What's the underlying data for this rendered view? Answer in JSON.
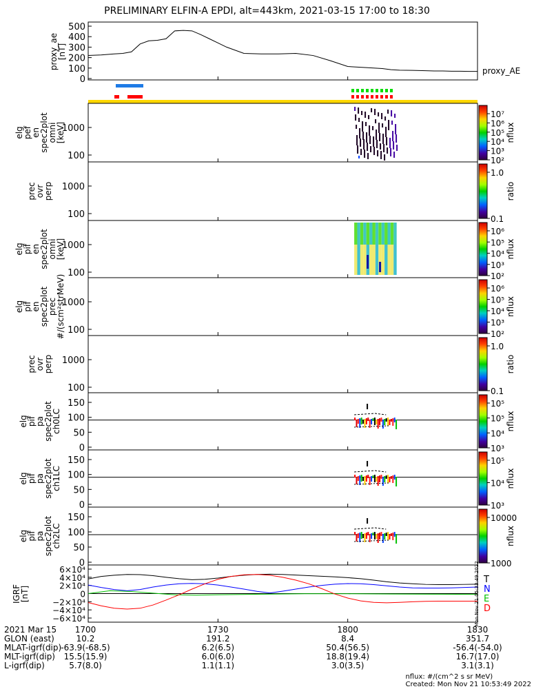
{
  "title": "PRELIMINARY ELFIN-A EPDI, alt=443km, 2021-03-15 17:00 to 18:30",
  "chart_data": {
    "type": "line",
    "panels": [
      {
        "name": "proxy_ae",
        "ylabel": [
          "proxy_ae",
          "[nT]"
        ],
        "right_label": "proxy_AE",
        "ylim": [
          0,
          500
        ],
        "yticks": [
          "500",
          "400",
          "300",
          "200",
          "100",
          "0"
        ],
        "yvalues": [
          500,
          400,
          300,
          200,
          100,
          0
        ],
        "series": [
          {
            "x": [
              0,
              3,
              6,
              8,
              10,
              12,
              14,
              16,
              18,
              20,
              22,
              24,
              26,
              28,
              30,
              32,
              36,
              40,
              44,
              48,
              52,
              56,
              60,
              64,
              66,
              68,
              70,
              72,
              75,
              78,
              80,
              82,
              84,
              86,
              88,
              90
            ],
            "y": [
              220,
              225,
              235,
              240,
              255,
              330,
              360,
              365,
              380,
              455,
              460,
              455,
              420,
              380,
              340,
              300,
              240,
              235,
              235,
              240,
              220,
              170,
              115,
              105,
              100,
              95,
              85,
              80,
              78,
              75,
              72,
              72,
              70,
              70,
              68,
              68
            ]
          }
        ]
      },
      {
        "name": "eflux-perp",
        "ylabel": [
          "elg",
          "pef",
          "en",
          "spec2plot",
          "omni",
          "[keV]"
        ],
        "yticks": [
          "1000",
          "100"
        ],
        "colorbar": {
          "label": "nflux",
          "ticks": [
            "10⁷",
            "10⁶",
            "10⁵",
            "10⁴",
            "10³",
            "10²"
          ]
        }
      },
      {
        "name": "prec-ratio-1",
        "ylabel": [
          "prec",
          "ovr",
          "perp"
        ],
        "yticks": [
          "1000",
          "100"
        ],
        "colorbar": {
          "label": "ratio",
          "ticks": [
            "1.0",
            "0.1"
          ]
        }
      },
      {
        "name": "iflux-omni",
        "ylabel": [
          "elg",
          "pif",
          "en",
          "spec2plot",
          "omni",
          "[keV]"
        ],
        "yticks": [
          "1000",
          "100"
        ],
        "colorbar": {
          "label": "nflux",
          "ticks": [
            "10⁶",
            "10⁵",
            "10⁴",
            "10³",
            "10²"
          ]
        }
      },
      {
        "name": "iflux-prec",
        "ylabel": [
          "elg",
          "pif",
          "en",
          "spec2plot",
          "prec",
          "#/(scm²strMeV)"
        ],
        "yticks": [
          "1000",
          "100"
        ],
        "colorbar": {
          "label": "nflux",
          "ticks": [
            "10⁶",
            "10⁵",
            "10⁴",
            "10³",
            "10²"
          ]
        }
      },
      {
        "name": "prec-ratio-2",
        "ylabel": [
          "prec",
          "ovr",
          "perp"
        ],
        "yticks": [
          "1000",
          "100"
        ],
        "colorbar": {
          "label": "ratio",
          "ticks": [
            "1.0",
            "0.1"
          ]
        }
      },
      {
        "name": "pa-ch0",
        "ylabel": [
          "elg",
          "pif",
          "pa",
          "spec2plot",
          "ch0LC"
        ],
        "yticks": [
          "150",
          "100",
          "50",
          "0"
        ],
        "colorbar": {
          "label": "nflux",
          "ticks": [
            "10⁵",
            "10⁵",
            "10⁴",
            "10³"
          ]
        }
      },
      {
        "name": "pa-ch1",
        "ylabel": [
          "elg",
          "pif",
          "pa",
          "spec2plot",
          "ch1LC"
        ],
        "yticks": [
          "150",
          "100",
          "50",
          "0"
        ],
        "colorbar": {
          "label": "nflux",
          "ticks": [
            "10⁵",
            "10⁴",
            "10³"
          ]
        }
      },
      {
        "name": "pa-ch2",
        "ylabel": [
          "elg",
          "pif",
          "pa",
          "spec2plot",
          "ch2LC"
        ],
        "yticks": [
          "150",
          "100",
          "50",
          "0"
        ],
        "colorbar": {
          "label": "nflux",
          "ticks": [
            "10000",
            "1000"
          ]
        }
      },
      {
        "name": "igrf",
        "ylabel": [
          "IGRF",
          "[nT]"
        ],
        "ylim": [
          -60000,
          60000
        ],
        "yticks": [
          "6×10⁴",
          "4×10⁴",
          "2×10⁴",
          "0",
          "−2×10⁴",
          "−4×10⁴",
          "−6×10⁴"
        ],
        "yvalues": [
          60000,
          40000,
          20000,
          0,
          -20000,
          -40000,
          -60000
        ],
        "legend": [
          "T",
          "N",
          "E",
          "D"
        ],
        "side_text": "Mon Nov 21 05:33:49 2022",
        "series": [
          {
            "name": "T",
            "color": "#000000",
            "x": [
              0,
              3,
              6,
              9,
              12,
              15,
              18,
              21,
              24,
              27,
              30,
              33,
              36,
              39,
              42,
              45,
              48,
              51,
              54,
              57,
              60,
              63,
              66,
              69,
              72,
              75,
              78,
              81,
              84,
              87,
              90
            ],
            "y": [
              36000,
              42000,
              45000,
              47000,
              46500,
              44000,
              40000,
              36500,
              34000,
              35000,
              38000,
              42000,
              45000,
              47000,
              47500,
              47000,
              45500,
              44000,
              42500,
              41000,
              39000,
              36500,
              33000,
              29000,
              26000,
              24000,
              22500,
              22000,
              22000,
              22500,
              23000
            ]
          },
          {
            "name": "N",
            "color": "#0000ff",
            "x": [
              0,
              3,
              6,
              9,
              12,
              15,
              18,
              21,
              24,
              27,
              30,
              33,
              36,
              39,
              42,
              45,
              48,
              51,
              54,
              57,
              60,
              63,
              66,
              69,
              72,
              75,
              78,
              81,
              84,
              87,
              90
            ],
            "y": [
              21000,
              15000,
              10000,
              7000,
              10000,
              16000,
              21000,
              24000,
              25000,
              24000,
              21000,
              16000,
              11000,
              5500,
              1500,
              6000,
              11000,
              16000,
              20000,
              23000,
              24500,
              24000,
              22000,
              19000,
              16000,
              14000,
              13500,
              13500,
              14000,
              15000,
              16000
            ]
          },
          {
            "name": "E",
            "color": "#00c000",
            "x": [
              0,
              5,
              10,
              15,
              20,
              25,
              30,
              40,
              50,
              60,
              70,
              80,
              90
            ],
            "y": [
              0,
              7000,
              5000,
              1000,
              -3000,
              -4000,
              -3000,
              -1500,
              -500,
              -500,
              -1000,
              -1500,
              -2000
            ]
          },
          {
            "name": "D",
            "color": "#ff0000",
            "x": [
              0,
              3,
              6,
              9,
              12,
              15,
              18,
              21,
              24,
              27,
              30,
              33,
              36,
              39,
              42,
              45,
              48,
              51,
              54,
              57,
              60,
              63,
              66,
              69,
              72,
              75,
              78,
              81,
              84,
              87,
              90
            ],
            "y": [
              -22000,
              -30000,
              -36000,
              -38000,
              -36000,
              -28000,
              -16000,
              -3000,
              11000,
              24000,
              35000,
              42000,
              46000,
              47000,
              45000,
              40000,
              33000,
              24000,
              12000,
              -1000,
              -11000,
              -18000,
              -21500,
              -22500,
              -21500,
              -20000,
              -19000,
              -18500,
              -18500,
              -18500,
              -18500
            ]
          }
        ]
      }
    ],
    "x_axis": {
      "rows": [
        {
          "label": "2021 Mar 15",
          "values": [
            "1700",
            "1730",
            "1800",
            "1830"
          ]
        },
        {
          "label": "GLON (east)",
          "values": [
            "10.2",
            "191.2",
            "8.4",
            "351.7"
          ]
        },
        {
          "label": "MLAT-igrf(dip)",
          "values": [
            "-63.9(-68.5)",
            "6.2(6.5)",
            "50.4(56.5)",
            "-56.4(-54.0)"
          ]
        },
        {
          "label": "MLT-igrf(dip)",
          "values": [
            "15.5(15.9)",
            "6.0(6.0)",
            "18.8(19.4)",
            "16.7(17.0)"
          ]
        },
        {
          "label": "L-igrf(dip)",
          "values": [
            "5.7(8.0)",
            "1.1(1.1)",
            "3.0(3.5)",
            "3.1(3.1)"
          ]
        }
      ],
      "minutes": [
        0,
        30,
        60,
        90
      ]
    }
  },
  "footer": {
    "units": "nflux: #/(cm^2 s sr MeV)",
    "created": "Created: Mon Nov 21 10:53:49 2022"
  },
  "colors": {
    "blue_bar": "#1e7be6",
    "red_bar": "#ff0000",
    "green_bar": "#00dd00",
    "yellow_bar": "#ffd700"
  }
}
